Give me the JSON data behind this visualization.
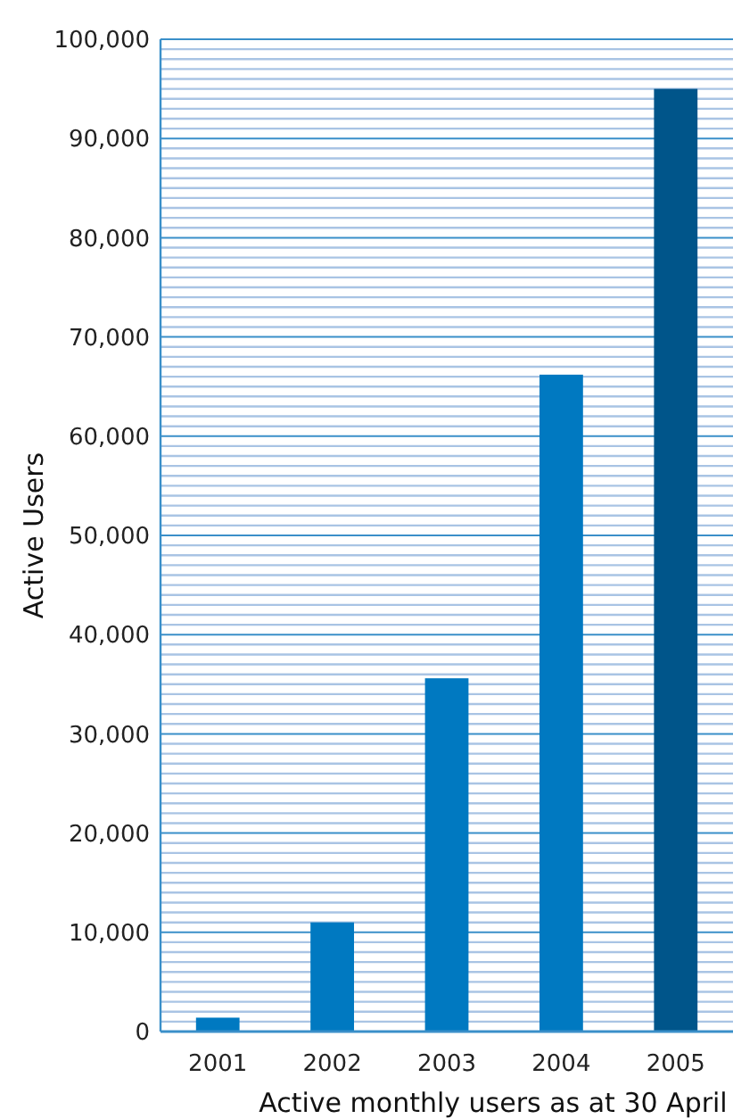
{
  "chart_data": {
    "type": "bar",
    "xlabel": "Active monthly users as at 30 April",
    "ylabel": "Active Users",
    "categories": [
      "2001",
      "2002",
      "2003",
      "2004",
      "2005"
    ],
    "values": [
      1400,
      11000,
      35600,
      66200,
      95000
    ],
    "colors": [
      "#0079c1",
      "#0079c1",
      "#0079c1",
      "#0079c1",
      "#00558a"
    ],
    "ylim": [
      0,
      100000
    ],
    "yticks": [
      {
        "value": 0,
        "label": "0"
      },
      {
        "value": 1000,
        "label": null
      },
      {
        "value": 2000,
        "label": null
      },
      {
        "value": 3000,
        "label": null
      },
      {
        "value": 4000,
        "label": null
      },
      {
        "value": 5000,
        "label": null
      },
      {
        "value": 6000,
        "label": null
      },
      {
        "value": 7000,
        "label": null
      },
      {
        "value": 8000,
        "label": null
      },
      {
        "value": 9000,
        "label": null
      },
      {
        "value": 10000,
        "label": "10,000"
      },
      {
        "value": 11000,
        "label": null
      },
      {
        "value": 12000,
        "label": null
      },
      {
        "value": 13000,
        "label": null
      },
      {
        "value": 14000,
        "label": null
      },
      {
        "value": 15000,
        "label": null
      },
      {
        "value": 16000,
        "label": null
      },
      {
        "value": 17000,
        "label": null
      },
      {
        "value": 18000,
        "label": null
      },
      {
        "value": 19000,
        "label": null
      },
      {
        "value": 20000,
        "label": "20,000"
      },
      {
        "value": 21000,
        "label": null
      },
      {
        "value": 22000,
        "label": null
      },
      {
        "value": 23000,
        "label": null
      },
      {
        "value": 24000,
        "label": null
      },
      {
        "value": 25000,
        "label": null
      },
      {
        "value": 26000,
        "label": null
      },
      {
        "value": 27000,
        "label": null
      },
      {
        "value": 28000,
        "label": null
      },
      {
        "value": 29000,
        "label": null
      },
      {
        "value": 30000,
        "label": "30,000"
      },
      {
        "value": 31000,
        "label": null
      },
      {
        "value": 32000,
        "label": null
      },
      {
        "value": 33000,
        "label": null
      },
      {
        "value": 34000,
        "label": null
      },
      {
        "value": 35000,
        "label": null
      },
      {
        "value": 36000,
        "label": null
      },
      {
        "value": 37000,
        "label": null
      },
      {
        "value": 38000,
        "label": null
      },
      {
        "value": 39000,
        "label": null
      },
      {
        "value": 40000,
        "label": "40,000"
      },
      {
        "value": 41000,
        "label": null
      },
      {
        "value": 42000,
        "label": null
      },
      {
        "value": 43000,
        "label": null
      },
      {
        "value": 44000,
        "label": null
      },
      {
        "value": 45000,
        "label": null
      },
      {
        "value": 46000,
        "label": null
      },
      {
        "value": 47000,
        "label": null
      },
      {
        "value": 48000,
        "label": null
      },
      {
        "value": 49000,
        "label": null
      },
      {
        "value": 50000,
        "label": "50,000"
      },
      {
        "value": 51000,
        "label": null
      },
      {
        "value": 52000,
        "label": null
      },
      {
        "value": 53000,
        "label": null
      },
      {
        "value": 54000,
        "label": null
      },
      {
        "value": 55000,
        "label": null
      },
      {
        "value": 56000,
        "label": null
      },
      {
        "value": 57000,
        "label": null
      },
      {
        "value": 58000,
        "label": null
      },
      {
        "value": 59000,
        "label": null
      },
      {
        "value": 60000,
        "label": "60,000"
      },
      {
        "value": 61000,
        "label": null
      },
      {
        "value": 62000,
        "label": null
      },
      {
        "value": 63000,
        "label": null
      },
      {
        "value": 64000,
        "label": null
      },
      {
        "value": 65000,
        "label": null
      },
      {
        "value": 66000,
        "label": null
      },
      {
        "value": 67000,
        "label": null
      },
      {
        "value": 68000,
        "label": null
      },
      {
        "value": 69000,
        "label": null
      },
      {
        "value": 70000,
        "label": "70,000"
      },
      {
        "value": 71000,
        "label": null
      },
      {
        "value": 72000,
        "label": null
      },
      {
        "value": 73000,
        "label": null
      },
      {
        "value": 74000,
        "label": null
      },
      {
        "value": 75000,
        "label": null
      },
      {
        "value": 76000,
        "label": null
      },
      {
        "value": 77000,
        "label": null
      },
      {
        "value": 78000,
        "label": null
      },
      {
        "value": 79000,
        "label": null
      },
      {
        "value": 80000,
        "label": "80,000"
      },
      {
        "value": 81000,
        "label": null
      },
      {
        "value": 82000,
        "label": null
      },
      {
        "value": 83000,
        "label": null
      },
      {
        "value": 84000,
        "label": null
      },
      {
        "value": 85000,
        "label": null
      },
      {
        "value": 86000,
        "label": null
      },
      {
        "value": 87000,
        "label": null
      },
      {
        "value": 88000,
        "label": null
      },
      {
        "value": 89000,
        "label": null
      },
      {
        "value": 90000,
        "label": "90,000"
      },
      {
        "value": 91000,
        "label": null
      },
      {
        "value": 92000,
        "label": null
      },
      {
        "value": 93000,
        "label": null
      },
      {
        "value": 94000,
        "label": null
      },
      {
        "value": 95000,
        "label": null
      },
      {
        "value": 96000,
        "label": null
      },
      {
        "value": 97000,
        "label": null
      },
      {
        "value": 98000,
        "label": null
      },
      {
        "value": 99000,
        "label": null
      },
      {
        "value": 100000,
        "label": "100,000"
      }
    ],
    "grid": "y"
  }
}
